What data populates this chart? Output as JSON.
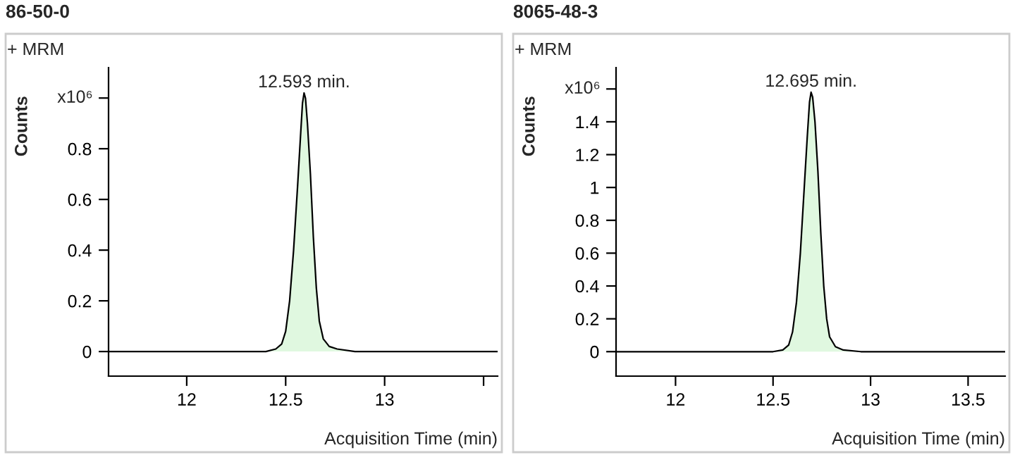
{
  "chart_data": [
    {
      "type": "area",
      "title": "86-50-0",
      "xlabel": "Acquisition Time (min)",
      "ylabel": "Counts",
      "annotations": [
        "+ MRM",
        "x10⁶",
        {
          "text": "12.593 min.",
          "x": 12.593,
          "y": 1.02
        }
      ],
      "xlim": [
        11.605,
        13.571
      ],
      "xticks": [
        12,
        12.5,
        13,
        {
          "value": 13.5,
          "label": null
        }
      ],
      "ylim": [
        -0.097,
        1.12
      ],
      "yticks": [
        0,
        0.2,
        0.4,
        0.6,
        0.8,
        {
          "value": 1,
          "label": null
        }
      ],
      "grid": false,
      "legend": false,
      "series": [
        {
          "color": "#e0f8e0",
          "x": [
            11.605,
            12.0,
            12.4,
            12.45,
            12.48,
            12.5,
            12.52,
            12.54,
            12.56,
            12.575,
            12.585,
            12.593,
            12.6,
            12.61,
            12.625,
            12.64,
            12.655,
            12.67,
            12.69,
            12.72,
            12.76,
            12.85,
            13.0,
            13.3,
            13.571
          ],
          "values": [
            0,
            0,
            0,
            0.01,
            0.03,
            0.08,
            0.2,
            0.4,
            0.65,
            0.85,
            0.98,
            1.02,
            1.0,
            0.9,
            0.7,
            0.45,
            0.25,
            0.12,
            0.05,
            0.02,
            0.01,
            0,
            0,
            0,
            0
          ]
        }
      ]
    },
    {
      "type": "area",
      "title": "8065-48-3",
      "xlabel": "Acquisition Time (min)",
      "ylabel": "Counts",
      "annotations": [
        "+ MRM",
        "x10⁶",
        {
          "text": "12.695 min.",
          "x": 12.695,
          "y": 1.58
        }
      ],
      "xlim": [
        11.695,
        13.69
      ],
      "xticks": [
        12,
        12.5,
        13,
        13.5
      ],
      "ylim": [
        -0.149,
        1.73
      ],
      "yticks": [
        0,
        0.2,
        0.4,
        0.6,
        0.8,
        1,
        1.2,
        1.4,
        {
          "value": 1.6,
          "label": null
        }
      ],
      "grid": false,
      "legend": false,
      "series": [
        {
          "color": "#e0f8e0",
          "x": [
            11.695,
            12.0,
            12.5,
            12.55,
            12.58,
            12.6,
            12.62,
            12.64,
            12.66,
            12.675,
            12.687,
            12.695,
            12.703,
            12.715,
            12.73,
            12.745,
            12.76,
            12.775,
            12.79,
            12.82,
            12.86,
            12.95,
            13.1,
            13.4,
            13.69
          ],
          "values": [
            0,
            0,
            0,
            0.01,
            0.04,
            0.12,
            0.3,
            0.6,
            1.0,
            1.3,
            1.52,
            1.58,
            1.55,
            1.4,
            1.1,
            0.72,
            0.4,
            0.2,
            0.09,
            0.03,
            0.01,
            0,
            0,
            0,
            0
          ]
        }
      ]
    }
  ]
}
